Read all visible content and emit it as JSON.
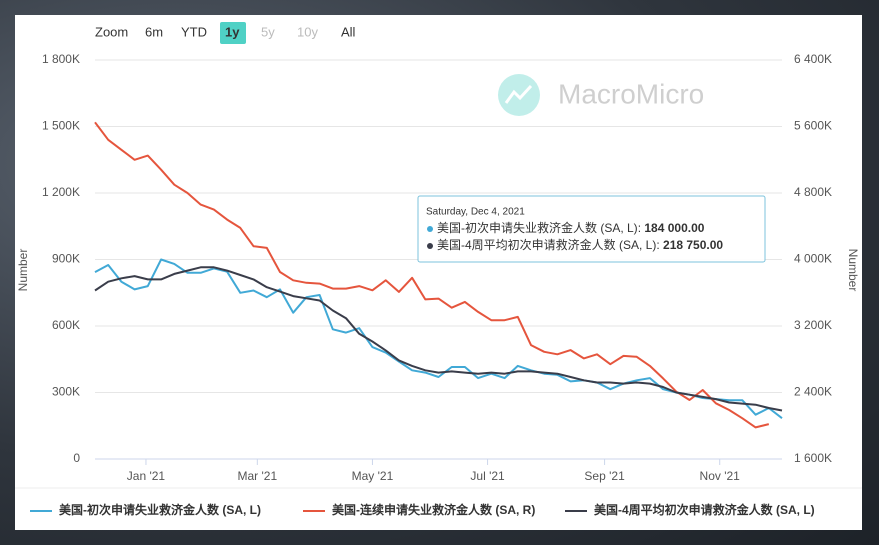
{
  "chart_data": {
    "type": "line",
    "zoom": {
      "label": "Zoom",
      "buttons": [
        "6m",
        "YTD",
        "1y",
        "5y",
        "10y",
        "All"
      ],
      "selected": "1y",
      "disabled": [
        "5y",
        "10y"
      ]
    },
    "watermark": "MacroMicro",
    "ylabel": "Number",
    "y2label": "Number",
    "x": [
      "2020-12-05",
      "2020-12-12",
      "2020-12-19",
      "2020-12-26",
      "2021-01-02",
      "2021-01-09",
      "2021-01-16",
      "2021-01-23",
      "2021-01-30",
      "2021-02-06",
      "2021-02-13",
      "2021-02-20",
      "2021-02-27",
      "2021-03-06",
      "2021-03-13",
      "2021-03-20",
      "2021-03-27",
      "2021-04-03",
      "2021-04-10",
      "2021-04-17",
      "2021-04-24",
      "2021-05-01",
      "2021-05-08",
      "2021-05-15",
      "2021-05-22",
      "2021-05-29",
      "2021-06-05",
      "2021-06-12",
      "2021-06-19",
      "2021-06-26",
      "2021-07-03",
      "2021-07-10",
      "2021-07-17",
      "2021-07-24",
      "2021-07-31",
      "2021-08-07",
      "2021-08-14",
      "2021-08-21",
      "2021-08-28",
      "2021-09-04",
      "2021-09-11",
      "2021-09-18",
      "2021-09-25",
      "2021-10-02",
      "2021-10-09",
      "2021-10-16",
      "2021-10-23",
      "2021-10-30",
      "2021-11-06",
      "2021-11-13",
      "2021-11-20",
      "2021-11-27",
      "2021-12-04"
    ],
    "xlim": [
      "2020-12-05",
      "2021-12-04"
    ],
    "xticks": [
      {
        "value": "2021-01-01",
        "label": "Jan '21"
      },
      {
        "value": "2021-03-01",
        "label": "Mar '21"
      },
      {
        "value": "2021-05-01",
        "label": "May '21"
      },
      {
        "value": "2021-07-01",
        "label": "Jul '21"
      },
      {
        "value": "2021-09-01",
        "label": "Sep '21"
      },
      {
        "value": "2021-11-01",
        "label": "Nov '21"
      }
    ],
    "ylim": [
      0,
      1800000
    ],
    "yticks": [
      0,
      {
        "value": 300000,
        "label": "300K"
      },
      {
        "value": 600000,
        "label": "600K"
      },
      {
        "value": 900000,
        "label": "900K"
      },
      {
        "value": 1200000,
        "label": "1 200K"
      },
      {
        "value": 1500000,
        "label": "1 500K"
      },
      {
        "value": 1800000,
        "label": "1 800K"
      }
    ],
    "y2lim": [
      1600000,
      6400000
    ],
    "y2ticks": [
      {
        "value": 1600000,
        "label": "1 600K"
      },
      {
        "value": 2400000,
        "label": "2 400K"
      },
      {
        "value": 3200000,
        "label": "3 200K"
      },
      {
        "value": 4000000,
        "label": "4 000K"
      },
      {
        "value": 4800000,
        "label": "4 800K"
      },
      {
        "value": 5600000,
        "label": "5 600K"
      },
      {
        "value": 6400000,
        "label": "6 400K"
      }
    ],
    "grid": true,
    "legend": "bottom",
    "series": [
      {
        "name": "美国-初次申请失业救济金人数 (SA, L)",
        "color": "#41a9d6",
        "axis": "y",
        "values": [
          843000,
          875000,
          800000,
          765000,
          780000,
          900000,
          880000,
          840000,
          840000,
          860000,
          845000,
          750000,
          760000,
          730000,
          765000,
          660000,
          730000,
          740000,
          585000,
          570000,
          590000,
          505000,
          480000,
          440000,
          400000,
          390000,
          370000,
          415000,
          415000,
          365000,
          385000,
          365000,
          420000,
          400000,
          385000,
          380000,
          350000,
          355000,
          345000,
          315000,
          340000,
          355000,
          365000,
          315000,
          300000,
          290000,
          275000,
          270000,
          265000,
          265000,
          200000,
          230000,
          184000
        ]
      },
      {
        "name": "美国-连续申请失业救济金人数 (SA, R)",
        "color": "#e5553d",
        "axis": "y2",
        "values": [
          5650000,
          5440000,
          5320000,
          5200000,
          5250000,
          5080000,
          4900000,
          4800000,
          4660000,
          4600000,
          4480000,
          4380000,
          4160000,
          4140000,
          3850000,
          3750000,
          3720000,
          3710000,
          3650000,
          3650000,
          3680000,
          3630000,
          3750000,
          3610000,
          3780000,
          3520000,
          3530000,
          3420000,
          3490000,
          3370000,
          3270000,
          3270000,
          3310000,
          2970000,
          2890000,
          2860000,
          2910000,
          2810000,
          2860000,
          2740000,
          2840000,
          2830000,
          2720000,
          2570000,
          2410000,
          2310000,
          2430000,
          2270000,
          2190000,
          2090000,
          1980000,
          2020000,
          null
        ]
      },
      {
        "name": "美国-4周平均初次申请救济金人数 (SA, L)",
        "color": "#3a3d4a",
        "axis": "y",
        "values": [
          760000,
          800000,
          815000,
          825000,
          810000,
          810000,
          835000,
          850000,
          865000,
          865000,
          850000,
          830000,
          810000,
          775000,
          755000,
          735000,
          725000,
          715000,
          670000,
          635000,
          565000,
          530000,
          490000,
          445000,
          420000,
          400000,
          390000,
          395000,
          390000,
          385000,
          390000,
          385000,
          395000,
          395000,
          390000,
          385000,
          370000,
          355000,
          345000,
          345000,
          340000,
          345000,
          340000,
          325000,
          300000,
          290000,
          280000,
          270000,
          255000,
          250000,
          245000,
          230000,
          218750
        ]
      }
    ],
    "tooltip": {
      "date": "Saturday, Dec 4, 2021",
      "items": [
        {
          "name": "美国-初次申请失业救济金人数 (SA, L)",
          "value": "184 000.00",
          "color": "#41a9d6"
        },
        {
          "name": "美国-4周平均初次申请救济金人数 (SA, L)",
          "value": "218 750.00",
          "color": "#3a3d4a"
        }
      ]
    }
  }
}
